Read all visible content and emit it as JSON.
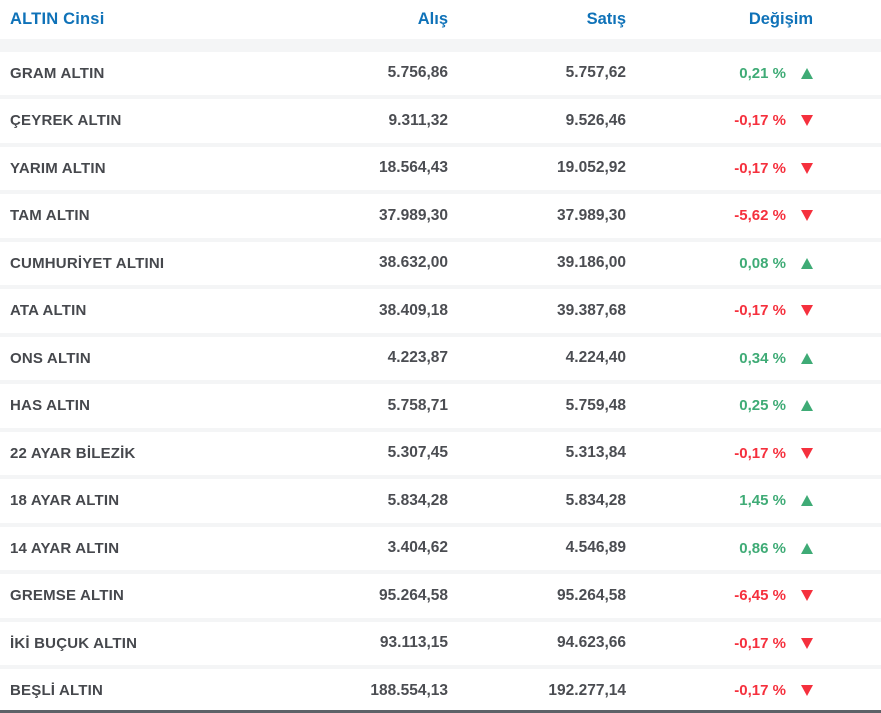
{
  "table": {
    "headers": {
      "name": "ALTIN Cinsi",
      "buy": "Alış",
      "sell": "Satış",
      "change": "Değişim"
    },
    "rows": [
      {
        "name": "GRAM ALTIN",
        "buy": "5.756,86",
        "sell": "5.757,62",
        "change": "0,21 %",
        "direction": "up"
      },
      {
        "name": "ÇEYREK ALTIN",
        "buy": "9.311,32",
        "sell": "9.526,46",
        "change": "-0,17 %",
        "direction": "down"
      },
      {
        "name": "YARIM ALTIN",
        "buy": "18.564,43",
        "sell": "19.052,92",
        "change": "-0,17 %",
        "direction": "down"
      },
      {
        "name": "TAM ALTIN",
        "buy": "37.989,30",
        "sell": "37.989,30",
        "change": "-5,62 %",
        "direction": "down"
      },
      {
        "name": "CUMHURİYET ALTINI",
        "buy": "38.632,00",
        "sell": "39.186,00",
        "change": "0,08 %",
        "direction": "up"
      },
      {
        "name": "ATA ALTIN",
        "buy": "38.409,18",
        "sell": "39.387,68",
        "change": "-0,17 %",
        "direction": "down"
      },
      {
        "name": "ONS ALTIN",
        "buy": "4.223,87",
        "sell": "4.224,40",
        "change": "0,34 %",
        "direction": "up"
      },
      {
        "name": "HAS ALTIN",
        "buy": "5.758,71",
        "sell": "5.759,48",
        "change": "0,25 %",
        "direction": "up"
      },
      {
        "name": "22 AYAR BİLEZİK",
        "buy": "5.307,45",
        "sell": "5.313,84",
        "change": "-0,17 %",
        "direction": "down"
      },
      {
        "name": "18 AYAR ALTIN",
        "buy": "5.834,28",
        "sell": "5.834,28",
        "change": "1,45 %",
        "direction": "up"
      },
      {
        "name": "14 AYAR ALTIN",
        "buy": "3.404,62",
        "sell": "4.546,89",
        "change": "0,86 %",
        "direction": "up"
      },
      {
        "name": "GREMSE ALTIN",
        "buy": "95.264,58",
        "sell": "95.264,58",
        "change": "-6,45 %",
        "direction": "down"
      },
      {
        "name": "İKİ BUÇUK ALTIN",
        "buy": "93.113,15",
        "sell": "94.623,66",
        "change": "-0,17 %",
        "direction": "down"
      },
      {
        "name": "BEŞLİ ALTIN",
        "buy": "188.554,13",
        "sell": "192.277,14",
        "change": "-0,17 %",
        "direction": "down"
      }
    ]
  },
  "icons": {
    "up": "up-arrow-icon",
    "down": "down-arrow-icon"
  },
  "colors": {
    "header_blue": "#0f72b8",
    "up_green": "#3fab76",
    "down_red": "#f5303d",
    "row_gap_gray": "#f4f5f6",
    "bottom_strip_gray": "#5d6167"
  }
}
